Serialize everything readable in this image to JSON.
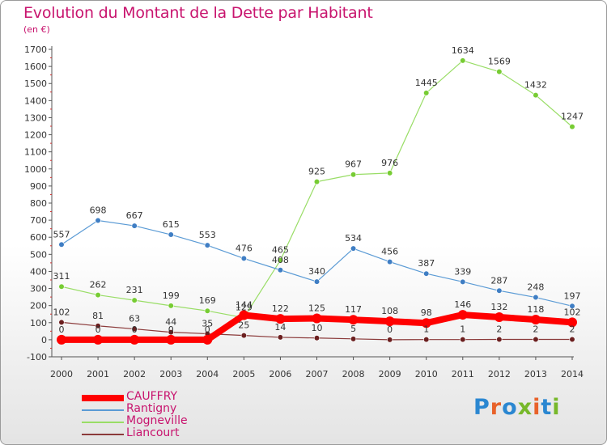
{
  "title": "Evolution du Montant de la Dette par Habitant",
  "subtitle": "(en €)",
  "logo": {
    "text": "ProXiti",
    "letters": [
      "P",
      "r",
      "o",
      "x",
      "i",
      "t",
      "i"
    ],
    "colors": [
      "#2b87d1",
      "#e8622a",
      "#2b87d1",
      "#77b82a",
      "#e8622a",
      "#2b87d1",
      "#77b82a"
    ]
  },
  "chart_data": {
    "type": "line",
    "title": "Evolution du Montant de la Dette par Habitant",
    "ylabel": "(en €)",
    "x": [
      "2000",
      "2001",
      "2002",
      "2003",
      "2004",
      "2005",
      "2006",
      "2007",
      "2008",
      "2009",
      "2010",
      "2011",
      "2012",
      "2013",
      "2014"
    ],
    "ylim": [
      -100,
      1700
    ],
    "yticks": [
      -100,
      0,
      100,
      200,
      300,
      400,
      500,
      600,
      700,
      800,
      900,
      1000,
      1100,
      1200,
      1300,
      1400,
      1500,
      1600,
      1700
    ],
    "grid": false,
    "legend_position": "bottom-left",
    "series": [
      {
        "name": "CAUFFRY",
        "color": "#ff0000",
        "marker_color": "#ff0000",
        "values": [
          0,
          0,
          0,
          0,
          0,
          144,
          122,
          125,
          117,
          108,
          98,
          146,
          132,
          118,
          102
        ],
        "labels": [
          "0",
          "0",
          "0",
          "0",
          "0",
          "144",
          "122",
          "125",
          "117",
          "108",
          "98",
          "146",
          "132",
          "118",
          "102"
        ]
      },
      {
        "name": "Rantigny",
        "color": "#5b9bd5",
        "marker_color": "#3f7ec4",
        "values": [
          557,
          698,
          667,
          615,
          553,
          476,
          408,
          340,
          534,
          456,
          387,
          339,
          287,
          248,
          197
        ],
        "labels": [
          "557",
          "698",
          "667",
          "615",
          "553",
          "476",
          "408",
          "340",
          "534",
          "456",
          "387",
          "339",
          "287",
          "248",
          "197"
        ]
      },
      {
        "name": "Mogneville",
        "color": "#99dd66",
        "marker_color": "#77cc33",
        "values": [
          311,
          262,
          231,
          199,
          169,
          129,
          465,
          925,
          967,
          976,
          1445,
          1634,
          1569,
          1432,
          1247
        ],
        "labels": [
          "311",
          "262",
          "231",
          "199",
          "169",
          "129",
          "465",
          "925",
          "967",
          "976",
          "1445",
          "1634",
          "1569",
          "1432",
          "1247"
        ]
      },
      {
        "name": "Liancourt",
        "color": "#8b3a3a",
        "marker_color": "#6b1f1f",
        "values": [
          102,
          81,
          63,
          44,
          35,
          25,
          14,
          10,
          5,
          0,
          1,
          1,
          2,
          2,
          2
        ],
        "labels": [
          "102",
          "81",
          "63",
          "44",
          "35",
          "25",
          "14",
          "10",
          "5",
          "0",
          "1",
          "1",
          "2",
          "2",
          "2"
        ]
      }
    ]
  }
}
